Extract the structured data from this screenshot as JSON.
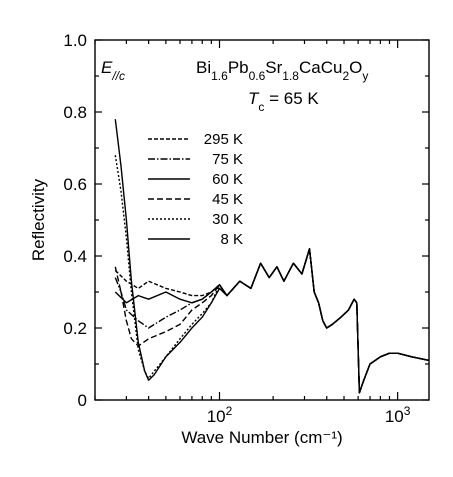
{
  "chart_data": {
    "type": "line",
    "xlabel": "Wave Number (cm⁻¹)",
    "ylabel": "Reflectivity",
    "xscale": "log",
    "xlim": [
      20,
      1500
    ],
    "ylim": [
      0,
      1.0
    ],
    "yticks": [
      0,
      0.2,
      0.4,
      0.6,
      0.8,
      1.0
    ],
    "ytick_labels": [
      "0",
      "0.2",
      "0.4",
      "0.6",
      "0.8",
      "1.0"
    ],
    "xticks": [
      100,
      1000
    ],
    "xtick_base": "10",
    "xtick_exponents": [
      "2",
      "3"
    ],
    "grid": false,
    "legend_position": "upper-middle",
    "annotations": {
      "polarization": {
        "main": "E",
        "sub": "//c"
      },
      "formula": [
        {
          "text": "Bi",
          "sub": false
        },
        {
          "text": "1.6",
          "sub": true
        },
        {
          "text": "Pb",
          "sub": false
        },
        {
          "text": "0.6",
          "sub": true
        },
        {
          "text": "Sr",
          "sub": false
        },
        {
          "text": "1.8",
          "sub": true
        },
        {
          "text": "CaCu",
          "sub": false
        },
        {
          "text": "2",
          "sub": true
        },
        {
          "text": "O",
          "sub": false
        },
        {
          "text": "y",
          "sub": true
        }
      ],
      "tc": {
        "symbol": "T",
        "sub": "c",
        "value": " = 65 K"
      }
    },
    "series": [
      {
        "name": "295 K",
        "dash": "4,2",
        "points": [
          [
            26,
            0.36
          ],
          [
            30,
            0.33
          ],
          [
            35,
            0.31
          ],
          [
            40,
            0.33
          ],
          [
            50,
            0.31
          ],
          [
            60,
            0.3
          ],
          [
            70,
            0.29
          ],
          [
            80,
            0.29
          ],
          [
            90,
            0.3
          ],
          [
            100,
            0.32
          ],
          [
            110,
            0.29
          ],
          [
            130,
            0.33
          ],
          [
            150,
            0.31
          ],
          [
            170,
            0.38
          ],
          [
            190,
            0.34
          ],
          [
            210,
            0.37
          ],
          [
            230,
            0.33
          ],
          [
            260,
            0.38
          ],
          [
            290,
            0.35
          ],
          [
            320,
            0.42
          ],
          [
            340,
            0.3
          ],
          [
            360,
            0.27
          ],
          [
            380,
            0.22
          ],
          [
            400,
            0.2
          ],
          [
            430,
            0.21
          ],
          [
            480,
            0.23
          ],
          [
            530,
            0.25
          ],
          [
            570,
            0.28
          ],
          [
            590,
            0.27
          ],
          [
            610,
            0.02
          ],
          [
            640,
            0.05
          ],
          [
            700,
            0.1
          ],
          [
            800,
            0.12
          ],
          [
            900,
            0.13
          ],
          [
            1000,
            0.13
          ],
          [
            1200,
            0.12
          ],
          [
            1500,
            0.11
          ]
        ]
      },
      {
        "name": "75 K",
        "dash": "7,2,1.5,2",
        "points": [
          [
            26,
            0.34
          ],
          [
            28,
            0.3
          ],
          [
            30,
            0.25
          ],
          [
            35,
            0.22
          ],
          [
            40,
            0.2
          ],
          [
            50,
            0.23
          ],
          [
            60,
            0.25
          ],
          [
            70,
            0.27
          ],
          [
            80,
            0.28
          ],
          [
            90,
            0.3
          ],
          [
            100,
            0.32
          ],
          [
            110,
            0.29
          ],
          [
            130,
            0.33
          ],
          [
            150,
            0.31
          ],
          [
            170,
            0.38
          ],
          [
            190,
            0.34
          ],
          [
            210,
            0.37
          ],
          [
            230,
            0.33
          ],
          [
            260,
            0.38
          ],
          [
            290,
            0.35
          ],
          [
            320,
            0.42
          ],
          [
            340,
            0.3
          ],
          [
            360,
            0.27
          ],
          [
            380,
            0.22
          ],
          [
            400,
            0.2
          ],
          [
            430,
            0.21
          ],
          [
            480,
            0.23
          ],
          [
            530,
            0.25
          ],
          [
            570,
            0.28
          ],
          [
            590,
            0.27
          ],
          [
            610,
            0.02
          ],
          [
            640,
            0.05
          ],
          [
            700,
            0.1
          ],
          [
            800,
            0.12
          ],
          [
            900,
            0.13
          ],
          [
            1000,
            0.13
          ],
          [
            1200,
            0.12
          ],
          [
            1500,
            0.11
          ]
        ]
      },
      {
        "name": "60 K",
        "dash": "",
        "points": [
          [
            26,
            0.3
          ],
          [
            30,
            0.27
          ],
          [
            35,
            0.29
          ],
          [
            40,
            0.28
          ],
          [
            50,
            0.3
          ],
          [
            60,
            0.28
          ],
          [
            70,
            0.27
          ],
          [
            80,
            0.28
          ],
          [
            90,
            0.3
          ],
          [
            100,
            0.32
          ],
          [
            110,
            0.29
          ],
          [
            130,
            0.33
          ],
          [
            150,
            0.31
          ],
          [
            170,
            0.38
          ],
          [
            190,
            0.34
          ],
          [
            210,
            0.37
          ],
          [
            230,
            0.33
          ],
          [
            260,
            0.38
          ],
          [
            290,
            0.35
          ],
          [
            320,
            0.42
          ],
          [
            340,
            0.3
          ],
          [
            360,
            0.27
          ],
          [
            380,
            0.22
          ],
          [
            400,
            0.2
          ],
          [
            430,
            0.21
          ],
          [
            480,
            0.23
          ],
          [
            530,
            0.25
          ],
          [
            570,
            0.28
          ],
          [
            590,
            0.27
          ],
          [
            610,
            0.02
          ],
          [
            640,
            0.05
          ],
          [
            700,
            0.1
          ],
          [
            800,
            0.12
          ],
          [
            900,
            0.13
          ],
          [
            1000,
            0.13
          ],
          [
            1200,
            0.12
          ],
          [
            1500,
            0.11
          ]
        ]
      },
      {
        "name": "45 K",
        "dash": "6,3",
        "points": [
          [
            26,
            0.37
          ],
          [
            28,
            0.3
          ],
          [
            30,
            0.22
          ],
          [
            32,
            0.17
          ],
          [
            35,
            0.15
          ],
          [
            40,
            0.17
          ],
          [
            50,
            0.19
          ],
          [
            60,
            0.21
          ],
          [
            70,
            0.25
          ],
          [
            80,
            0.27
          ],
          [
            90,
            0.29
          ],
          [
            100,
            0.32
          ],
          [
            110,
            0.29
          ],
          [
            130,
            0.33
          ],
          [
            150,
            0.31
          ],
          [
            170,
            0.38
          ],
          [
            190,
            0.34
          ],
          [
            210,
            0.37
          ],
          [
            230,
            0.33
          ],
          [
            260,
            0.38
          ],
          [
            290,
            0.35
          ],
          [
            320,
            0.42
          ],
          [
            340,
            0.3
          ],
          [
            360,
            0.27
          ],
          [
            380,
            0.22
          ],
          [
            400,
            0.2
          ],
          [
            430,
            0.21
          ],
          [
            480,
            0.23
          ],
          [
            530,
            0.25
          ],
          [
            570,
            0.28
          ],
          [
            590,
            0.27
          ],
          [
            610,
            0.02
          ],
          [
            640,
            0.05
          ],
          [
            700,
            0.1
          ],
          [
            800,
            0.12
          ],
          [
            900,
            0.13
          ],
          [
            1000,
            0.13
          ],
          [
            1200,
            0.12
          ],
          [
            1500,
            0.11
          ]
        ]
      },
      {
        "name": "30 K",
        "dash": "2,2",
        "points": [
          [
            26,
            0.68
          ],
          [
            28,
            0.58
          ],
          [
            30,
            0.45
          ],
          [
            32,
            0.3
          ],
          [
            35,
            0.14
          ],
          [
            38,
            0.08
          ],
          [
            40,
            0.06
          ],
          [
            43,
            0.08
          ],
          [
            50,
            0.12
          ],
          [
            60,
            0.17
          ],
          [
            70,
            0.21
          ],
          [
            80,
            0.24
          ],
          [
            90,
            0.27
          ],
          [
            100,
            0.32
          ],
          [
            110,
            0.29
          ],
          [
            130,
            0.33
          ],
          [
            150,
            0.31
          ],
          [
            170,
            0.38
          ],
          [
            190,
            0.34
          ],
          [
            210,
            0.37
          ],
          [
            230,
            0.33
          ],
          [
            260,
            0.38
          ],
          [
            290,
            0.35
          ],
          [
            320,
            0.42
          ],
          [
            340,
            0.3
          ],
          [
            360,
            0.27
          ],
          [
            380,
            0.22
          ],
          [
            400,
            0.2
          ],
          [
            430,
            0.21
          ],
          [
            480,
            0.23
          ],
          [
            530,
            0.25
          ],
          [
            570,
            0.28
          ],
          [
            590,
            0.27
          ],
          [
            610,
            0.02
          ],
          [
            640,
            0.05
          ],
          [
            700,
            0.1
          ],
          [
            800,
            0.12
          ],
          [
            900,
            0.13
          ],
          [
            1000,
            0.13
          ],
          [
            1200,
            0.12
          ],
          [
            1500,
            0.11
          ]
        ]
      },
      {
        "name": "8 K",
        "dash": "",
        "points": [
          [
            26,
            0.78
          ],
          [
            28,
            0.65
          ],
          [
            30,
            0.5
          ],
          [
            32,
            0.33
          ],
          [
            35,
            0.16
          ],
          [
            38,
            0.08
          ],
          [
            40,
            0.055
          ],
          [
            43,
            0.07
          ],
          [
            50,
            0.12
          ],
          [
            60,
            0.16
          ],
          [
            70,
            0.2
          ],
          [
            80,
            0.23
          ],
          [
            90,
            0.27
          ],
          [
            100,
            0.31
          ],
          [
            110,
            0.29
          ],
          [
            130,
            0.33
          ],
          [
            150,
            0.31
          ],
          [
            170,
            0.38
          ],
          [
            190,
            0.34
          ],
          [
            210,
            0.37
          ],
          [
            230,
            0.33
          ],
          [
            260,
            0.38
          ],
          [
            290,
            0.35
          ],
          [
            320,
            0.42
          ],
          [
            340,
            0.3
          ],
          [
            360,
            0.27
          ],
          [
            380,
            0.22
          ],
          [
            400,
            0.2
          ],
          [
            430,
            0.21
          ],
          [
            480,
            0.23
          ],
          [
            530,
            0.25
          ],
          [
            570,
            0.28
          ],
          [
            590,
            0.27
          ],
          [
            610,
            0.02
          ],
          [
            640,
            0.05
          ],
          [
            700,
            0.1
          ],
          [
            800,
            0.12
          ],
          [
            900,
            0.13
          ],
          [
            1000,
            0.13
          ],
          [
            1200,
            0.12
          ],
          [
            1500,
            0.11
          ]
        ]
      }
    ]
  }
}
